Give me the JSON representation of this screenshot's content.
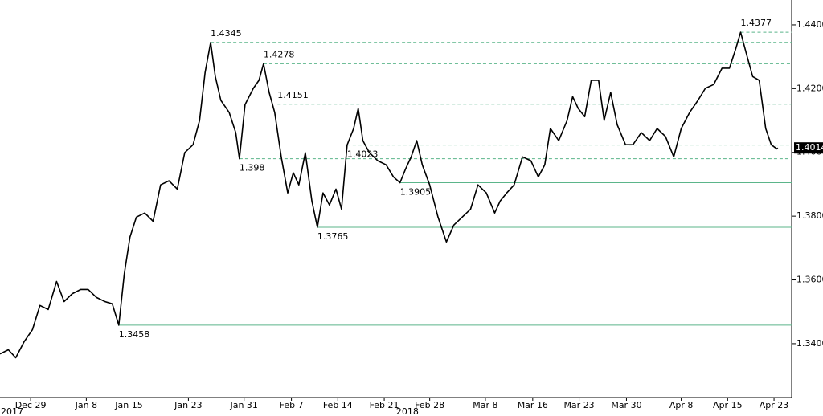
{
  "chart_data": {
    "type": "line",
    "series": [
      {
        "color": "#000000",
        "x": [
          -3.3,
          -2.4,
          -1.6,
          -0.7,
          0.2,
          1.0,
          1.9,
          2.8,
          3.6,
          4.5,
          5.4,
          6.2,
          7.1,
          8.0,
          8.8,
          9.5,
          10.1,
          10.7,
          11.4,
          12.3,
          13.2,
          14.0,
          14.9,
          15.8,
          16.6,
          17.5,
          18.2,
          18.8,
          19.4,
          19.9,
          20.5,
          21.4,
          22.1,
          22.5,
          23.1,
          24.0,
          24.6,
          25.1,
          25.7,
          26.3,
          27.0,
          27.7,
          28.3,
          28.9,
          29.6,
          30.3,
          30.9,
          31.5,
          32.2,
          32.9,
          33.5,
          34.1,
          34.8,
          35.3,
          35.8,
          36.5,
          37.4,
          38.3,
          39.1,
          39.8,
          40.4,
          41.0,
          41.6,
          42.2,
          43.0,
          43.9,
          44.8,
          45.6,
          46.5,
          47.4,
          48.2,
          49.1,
          50.0,
          50.6,
          51.3,
          52.1,
          53.0,
          53.9,
          54.7,
          55.4,
          56.0,
          56.9,
          57.8,
          58.4,
          59.0,
          59.7,
          60.4,
          61.2,
          61.8,
          62.5,
          63.2,
          64.1,
          64.9,
          65.8,
          66.7,
          67.5,
          68.4,
          69.3,
          70.1,
          71.0,
          71.9,
          72.7,
          73.6,
          74.5,
          75.3,
          76.0,
          76.5,
          77.2,
          77.8,
          78.5,
          79.2,
          79.8,
          80.4,
          80.5
        ],
        "values": [
          1.3368,
          1.3381,
          1.3356,
          1.3406,
          1.3444,
          1.352,
          1.3507,
          1.3595,
          1.3532,
          1.3557,
          1.357,
          1.357,
          1.3545,
          1.3532,
          1.3525,
          1.3458,
          1.362,
          1.3734,
          1.3797,
          1.381,
          1.3784,
          1.3898,
          1.3911,
          1.3885,
          1.3999,
          1.4024,
          1.41,
          1.4251,
          1.4345,
          1.4238,
          1.4163,
          1.4125,
          1.4062,
          1.398,
          1.415,
          1.4201,
          1.4226,
          1.4278,
          1.4188,
          1.4125,
          1.3986,
          1.3873,
          1.3936,
          1.3898,
          1.3999,
          1.3848,
          1.3765,
          1.3873,
          1.3835,
          1.3885,
          1.3822,
          1.4023,
          1.4075,
          1.4138,
          1.4037,
          1.3999,
          1.3974,
          1.3961,
          1.3923,
          1.3905,
          1.3948,
          1.3986,
          1.4037,
          1.3961,
          1.3898,
          1.3797,
          1.3719,
          1.3772,
          1.3797,
          1.3822,
          1.3898,
          1.3873,
          1.381,
          1.3848,
          1.3873,
          1.3898,
          1.3986,
          1.3974,
          1.3923,
          1.3961,
          1.4075,
          1.4037,
          1.41,
          1.4175,
          1.4138,
          1.4112,
          1.4226,
          1.4226,
          1.41,
          1.4188,
          1.4087,
          1.4024,
          1.4024,
          1.4062,
          1.4037,
          1.4075,
          1.405,
          1.3986,
          1.4075,
          1.4125,
          1.4163,
          1.4201,
          1.4213,
          1.4264,
          1.4264,
          1.4327,
          1.4377,
          1.4301,
          1.4238,
          1.4226,
          1.4075,
          1.4024,
          1.4011,
          1.4014
        ]
      }
    ],
    "xlim": [
      -3.3,
      82.0
    ],
    "ylim": [
      1.3231,
      1.4478
    ],
    "yticks": [
      {
        "value": 1.34,
        "label": "1.3400"
      },
      {
        "value": 1.36,
        "label": "1.3600"
      },
      {
        "value": 1.38,
        "label": "1.3800"
      },
      {
        "value": 1.4,
        "label": "1.4000"
      },
      {
        "value": 1.42,
        "label": "1.4200"
      },
      {
        "value": 1.44,
        "label": "1.4400"
      }
    ],
    "xticks": [
      {
        "value": 0,
        "label": "Dec 29"
      },
      {
        "value": 6.0,
        "label": "Jan 8"
      },
      {
        "value": 10.6,
        "label": "Jan 15"
      },
      {
        "value": 17.0,
        "label": "Jan 23"
      },
      {
        "value": 23.0,
        "label": "Jan 31"
      },
      {
        "value": 28.1,
        "label": "Feb 7"
      },
      {
        "value": 33.1,
        "label": "Feb 14"
      },
      {
        "value": 38.1,
        "label": "Feb 21"
      },
      {
        "value": 43.0,
        "label": "Feb 28"
      },
      {
        "value": 49.0,
        "label": "Mar 8"
      },
      {
        "value": 54.1,
        "label": "Mar 16"
      },
      {
        "value": 59.1,
        "label": "Mar 23"
      },
      {
        "value": 64.2,
        "label": "Mar 30"
      },
      {
        "value": 70.1,
        "label": "Apr 8"
      },
      {
        "value": 75.1,
        "label": "Apr 15"
      },
      {
        "value": 80.1,
        "label": "Apr 23"
      }
    ],
    "year_labels": [
      {
        "value": -2.0,
        "label": "2017"
      },
      {
        "value": 40.6,
        "label": "2018"
      }
    ],
    "last_value": 1.4014,
    "annotations": [
      {
        "value": 1.4345,
        "x": 19.4,
        "dashed": true,
        "position": "above"
      },
      {
        "value": 1.4278,
        "x": 25.1,
        "dashed": true,
        "position": "above"
      },
      {
        "value": 1.4151,
        "x": 26.6,
        "dashed": true,
        "position": "above"
      },
      {
        "value": 1.4023,
        "x": 34.1,
        "dashed": true,
        "position": "below"
      },
      {
        "value": 1.398,
        "x": 22.5,
        "dashed": true,
        "position": "below"
      },
      {
        "value": 1.4377,
        "x": 76.5,
        "dashed": true,
        "position": "above"
      },
      {
        "value": 1.3905,
        "x": 39.8,
        "dashed": false,
        "position": "below"
      },
      {
        "value": 1.3765,
        "x": 30.9,
        "dashed": false,
        "position": "below"
      },
      {
        "value": 1.3458,
        "x": 9.5,
        "dashed": false,
        "position": "below"
      }
    ],
    "annotation_color": "#5bb58a",
    "grid": false
  }
}
